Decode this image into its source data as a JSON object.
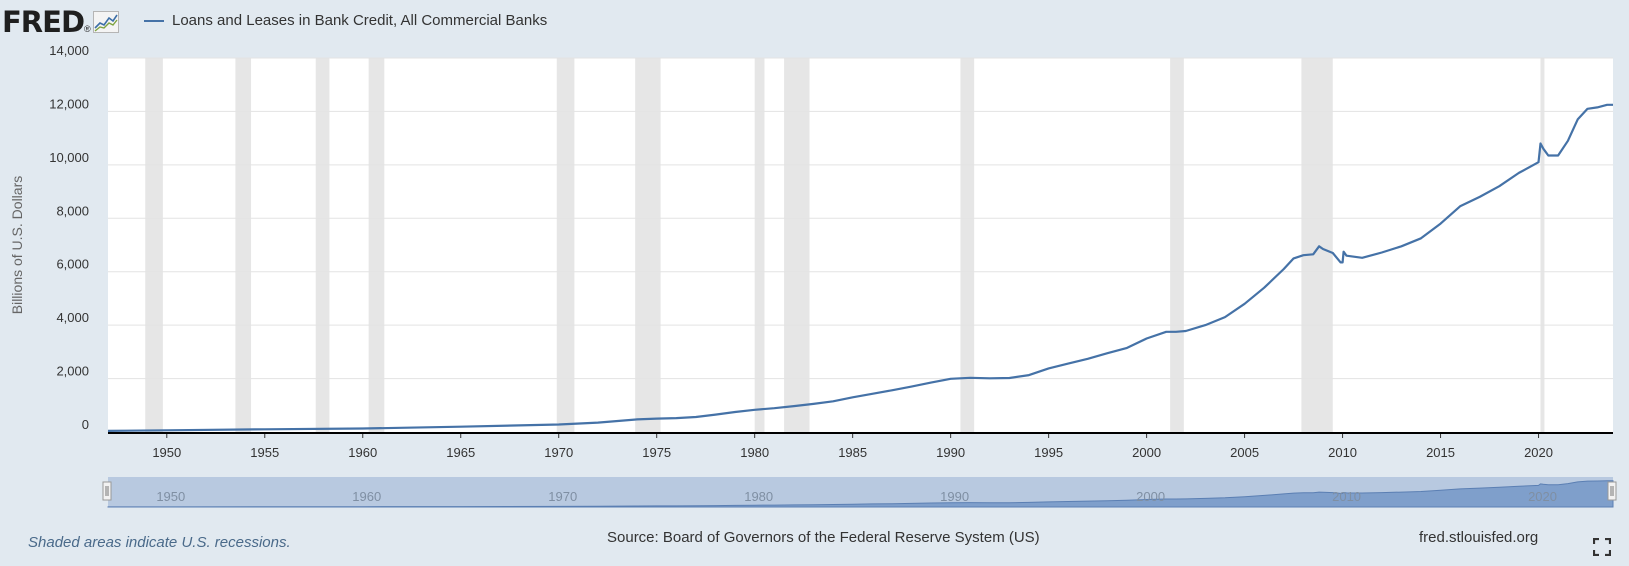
{
  "header": {
    "logo_text": "FRED",
    "logo_mark": "®",
    "logo_icon": "fred-graph-icon"
  },
  "legend": {
    "series_name": "Loans and Leases in Bank Credit, All Commercial Banks",
    "color": "#4572a7"
  },
  "footer": {
    "recession_note": "Shaded areas indicate U.S. recessions.",
    "source": "Source: Board of Governors of the Federal Reserve System (US)",
    "site": "fred.stlouisfed.org",
    "fullscreen_icon": "fullscreen-icon"
  },
  "colors": {
    "background": "#e1e9f0",
    "plot": "#ffffff",
    "recession": "#e6e6e6",
    "line": "#4572a7",
    "navigator": "#b8c9e0",
    "navigator_fill": "#7f9fcb"
  },
  "chart_data": {
    "type": "line",
    "title": "",
    "xlabel": "",
    "ylabel": "Billions of U.S. Dollars",
    "xlim": [
      1947.0,
      2023.8
    ],
    "ylim": [
      0,
      14000
    ],
    "y_ticks": [
      0,
      2000,
      4000,
      6000,
      8000,
      10000,
      12000,
      14000
    ],
    "y_tick_labels": [
      "0",
      "2,000",
      "4,000",
      "6,000",
      "8,000",
      "10,000",
      "12,000",
      "14,000"
    ],
    "x_ticks": [
      1950,
      1955,
      1960,
      1965,
      1970,
      1975,
      1980,
      1985,
      1990,
      1995,
      2000,
      2005,
      2010,
      2015,
      2020
    ],
    "x_tick_labels": [
      "1950",
      "1955",
      "1960",
      "1965",
      "1970",
      "1975",
      "1980",
      "1985",
      "1990",
      "1995",
      "2000",
      "2005",
      "2010",
      "2015",
      "2020"
    ],
    "navigator_ticks": [
      1950,
      1960,
      1970,
      1980,
      1990,
      2000,
      2010,
      2020
    ],
    "navigator_tick_labels": [
      "1950",
      "1960",
      "1970",
      "1980",
      "1990",
      "2000",
      "2010",
      "2020"
    ],
    "grid": true,
    "legend_position": "top-left",
    "recessions": [
      [
        1948.9,
        1949.8
      ],
      [
        1953.5,
        1954.3
      ],
      [
        1957.6,
        1958.3
      ],
      [
        1960.3,
        1961.1
      ],
      [
        1969.9,
        1970.8
      ],
      [
        1973.9,
        1975.2
      ],
      [
        1980.0,
        1980.5
      ],
      [
        1981.5,
        1982.8
      ],
      [
        1990.5,
        1991.2
      ],
      [
        2001.2,
        2001.9
      ],
      [
        2007.9,
        2009.5
      ],
      [
        2020.1,
        2020.3
      ]
    ],
    "series": [
      {
        "name": "Loans and Leases in Bank Credit, All Commercial Banks",
        "x": [
          1947.0,
          1950,
          1955,
          1960,
          1965,
          1970,
          1972,
          1974,
          1975,
          1976,
          1977,
          1978,
          1979,
          1980,
          1981,
          1982,
          1983,
          1984,
          1985,
          1986,
          1987,
          1988,
          1989,
          1990,
          1991,
          1992,
          1993,
          1994,
          1995,
          1996,
          1997,
          1998,
          1999,
          2000,
          2001,
          2001.5,
          2002,
          2003,
          2004,
          2005,
          2006,
          2007,
          2007.5,
          2008,
          2008.5,
          2008.8,
          2009,
          2009.5,
          2009.9,
          2010.0,
          2010.05,
          2010.2,
          2011,
          2012,
          2013,
          2014,
          2015,
          2016,
          2017,
          2018,
          2019,
          2020.0,
          2020.1,
          2020.25,
          2020.5,
          2021,
          2021.5,
          2022,
          2022.5,
          2023,
          2023.5,
          2023.8
        ],
        "values": [
          40,
          65,
          100,
          130,
          200,
          280,
          350,
          470,
          500,
          520,
          560,
          650,
          750,
          830,
          890,
          970,
          1050,
          1150,
          1300,
          1430,
          1560,
          1700,
          1850,
          1990,
          2030,
          2010,
          2020,
          2130,
          2380,
          2560,
          2740,
          2950,
          3150,
          3500,
          3750,
          3750,
          3780,
          4000,
          4300,
          4800,
          5400,
          6100,
          6500,
          6620,
          6650,
          6950,
          6850,
          6700,
          6350,
          6350,
          6750,
          6600,
          6520,
          6720,
          6950,
          7250,
          7800,
          8450,
          8800,
          9200,
          9700,
          10100,
          10800,
          10600,
          10350,
          10350,
          10900,
          11700,
          12100,
          12150,
          12250,
          12250
        ]
      }
    ]
  }
}
